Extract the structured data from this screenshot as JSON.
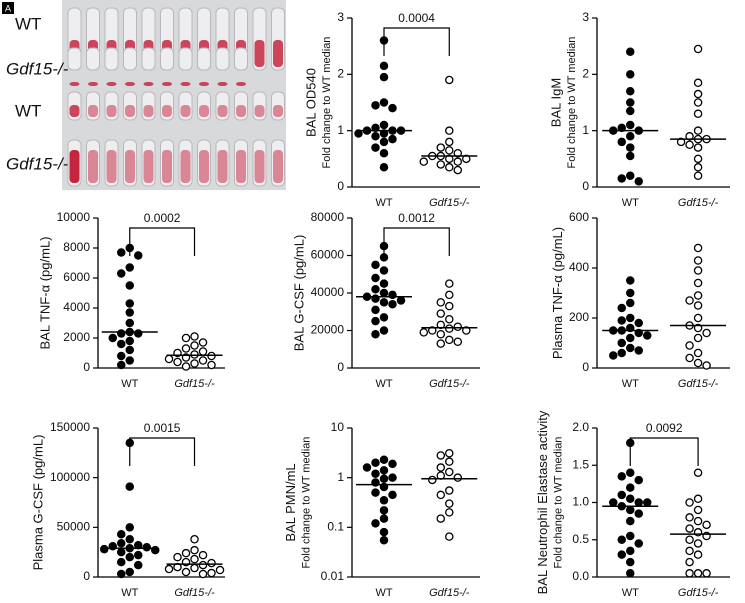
{
  "photo": {
    "panel_label": "A",
    "labels": [
      "WT",
      "Gdf15-/-",
      "WT",
      "Gdf15-/-"
    ]
  },
  "chart_data": [
    {
      "type": "strip",
      "ylabel": "BAL OD540",
      "ylabel2": "Fold change to WT median",
      "categories": [
        "WT",
        "Gdf15-/-"
      ],
      "annotation": "0.0004",
      "ylim": [
        0,
        3
      ],
      "yticks": [
        0,
        1,
        2,
        3
      ],
      "groups": [
        {
          "fill": "#000000",
          "values": [
            2.6,
            2.15,
            1.95,
            1.5,
            1.45,
            1.4,
            1.1,
            1.05,
            1.0,
            1.0,
            1.0,
            0.95,
            0.95,
            0.9,
            0.85,
            0.8,
            0.7,
            0.6,
            0.35
          ]
        },
        {
          "fill": "#ffffff",
          "values": [
            1.9,
            1.0,
            0.8,
            0.7,
            0.65,
            0.6,
            0.55,
            0.55,
            0.5,
            0.5,
            0.45,
            0.45,
            0.4,
            0.35,
            0.3
          ]
        }
      ]
    },
    {
      "type": "strip",
      "ylabel": "BAL IgM",
      "ylabel2": "Fold change to WT median",
      "categories": [
        "WT",
        "Gdf15-/-"
      ],
      "ylim": [
        0,
        3
      ],
      "yticks": [
        0,
        1,
        2,
        3
      ],
      "groups": [
        {
          "fill": "#000000",
          "values": [
            2.4,
            2.0,
            1.7,
            1.5,
            1.35,
            1.1,
            1.05,
            1.0,
            1.0,
            0.9,
            0.8,
            0.7,
            0.55,
            0.2,
            0.15,
            0.1
          ]
        },
        {
          "fill": "#ffffff",
          "values": [
            2.45,
            1.85,
            1.65,
            1.5,
            1.3,
            1.0,
            0.9,
            0.85,
            0.85,
            0.8,
            0.75,
            0.7,
            0.5,
            0.35,
            0.2
          ]
        }
      ]
    },
    {
      "type": "strip",
      "ylabel": "BAL TNF-α (pg/mL)",
      "categories": [
        "WT",
        "Gdf15-/-"
      ],
      "annotation": "0.0002",
      "ylim": [
        0,
        10000
      ],
      "yticks": [
        0,
        2000,
        4000,
        6000,
        8000,
        10000
      ],
      "groups": [
        {
          "fill": "#000000",
          "values": [
            8000,
            7700,
            7500,
            6700,
            6300,
            5500,
            4300,
            3700,
            3000,
            2400,
            2300,
            2300,
            2000,
            1800,
            1600,
            1200,
            800,
            500,
            200
          ]
        },
        {
          "fill": "#ffffff",
          "values": [
            2100,
            2000,
            1700,
            1500,
            1300,
            1100,
            1000,
            900,
            800,
            700,
            600,
            500,
            400,
            300,
            200,
            100
          ]
        }
      ]
    },
    {
      "type": "strip",
      "ylabel": "BAL G-CSF (pg/mL)",
      "categories": [
        "WT",
        "Gdf15-/-"
      ],
      "annotation": "0.0012",
      "ylim": [
        0,
        80000
      ],
      "yticks": [
        0,
        20000,
        40000,
        60000,
        80000
      ],
      "groups": [
        {
          "fill": "#000000",
          "values": [
            65000,
            59000,
            55000,
            52000,
            48000,
            45000,
            42000,
            40000,
            39000,
            38000,
            37000,
            36000,
            35000,
            34000,
            31000,
            27000,
            25000,
            20000,
            18000
          ]
        },
        {
          "fill": "#ffffff",
          "values": [
            45000,
            39000,
            35000,
            33000,
            29000,
            26000,
            23000,
            22000,
            21000,
            20000,
            20000,
            19000,
            18000,
            15000,
            14000,
            13000
          ]
        }
      ]
    },
    {
      "type": "strip",
      "ylabel": "Plasma TNF-α (pg/mL)",
      "categories": [
        "WT",
        "Gdf15-/-"
      ],
      "ylim": [
        0,
        600
      ],
      "yticks": [
        0,
        200,
        400,
        600
      ],
      "groups": [
        {
          "fill": "#000000",
          "values": [
            350,
            300,
            260,
            240,
            200,
            190,
            180,
            160,
            150,
            150,
            140,
            130,
            120,
            100,
            80,
            70,
            60,
            50
          ]
        },
        {
          "fill": "#ffffff",
          "values": [
            480,
            430,
            390,
            340,
            290,
            270,
            250,
            200,
            170,
            160,
            140,
            120,
            90,
            60,
            40,
            20,
            10
          ]
        }
      ]
    },
    {
      "type": "strip",
      "ylabel": "Plasma G-CSF (pg/mL)",
      "categories": [
        "WT",
        "Gdf15-/-"
      ],
      "annotation": "0.0015",
      "ylim": [
        0,
        150000
      ],
      "yticks": [
        0,
        50000,
        100000,
        150000
      ],
      "groups": [
        {
          "fill": "#000000",
          "values": [
            135000,
            91000,
            50000,
            43000,
            38000,
            34000,
            32000,
            31000,
            30000,
            29000,
            28000,
            27000,
            25000,
            22000,
            20000,
            15000,
            12000,
            5000,
            3000
          ]
        },
        {
          "fill": "#ffffff",
          "values": [
            38000,
            27000,
            24000,
            22000,
            20000,
            18000,
            15000,
            14000,
            12000,
            10000,
            9000,
            8000,
            7000,
            5000,
            4000,
            3000
          ]
        }
      ]
    },
    {
      "type": "strip",
      "ylabel": "BAL PMN/mL",
      "ylabel2": "Fold change to WT median",
      "categories": [
        "WT",
        "Gdf15-/-"
      ],
      "yscale": "log",
      "ylim": [
        0.01,
        10
      ],
      "yticks": [
        0.01,
        0.1,
        1,
        10
      ],
      "groups": [
        {
          "fill": "#000000",
          "values": [
            2.3,
            2.0,
            1.9,
            1.6,
            1.4,
            1.2,
            1.0,
            0.95,
            0.8,
            0.65,
            0.5,
            0.45,
            0.35,
            0.22,
            0.15,
            0.12,
            0.08,
            0.055
          ]
        },
        {
          "fill": "#ffffff",
          "values": [
            3.1,
            2.8,
            2.1,
            1.6,
            1.3,
            1.1,
            1.0,
            0.9,
            0.55,
            0.45,
            0.3,
            0.2,
            0.15,
            0.065
          ]
        }
      ]
    },
    {
      "type": "strip",
      "ylabel": "BAL Neutrophil Elastase activity",
      "ylabel2": "Fold change to WT median",
      "categories": [
        "WT",
        "Gdf15-/-"
      ],
      "annotation": "0.0092",
      "ylim": [
        0,
        2
      ],
      "yticks": [
        {
          "value": 0,
          "label": "0.0"
        },
        0.5,
        {
          "value": 1,
          "label": "1.0"
        },
        1.5,
        {
          "value": 2,
          "label": "2.0"
        }
      ],
      "groups": [
        {
          "fill": "#000000",
          "values": [
            1.8,
            1.4,
            1.35,
            1.3,
            1.2,
            1.1,
            1.05,
            1.0,
            1.0,
            1.0,
            0.95,
            0.9,
            0.85,
            0.75,
            0.55,
            0.5,
            0.45,
            0.35,
            0.3,
            0.2,
            0.05
          ]
        },
        {
          "fill": "#ffffff",
          "values": [
            1.4,
            1.05,
            1.0,
            0.9,
            0.8,
            0.75,
            0.7,
            0.65,
            0.6,
            0.55,
            0.5,
            0.45,
            0.35,
            0.3,
            0.2,
            0.05,
            0.05,
            0.05
          ]
        }
      ]
    }
  ]
}
